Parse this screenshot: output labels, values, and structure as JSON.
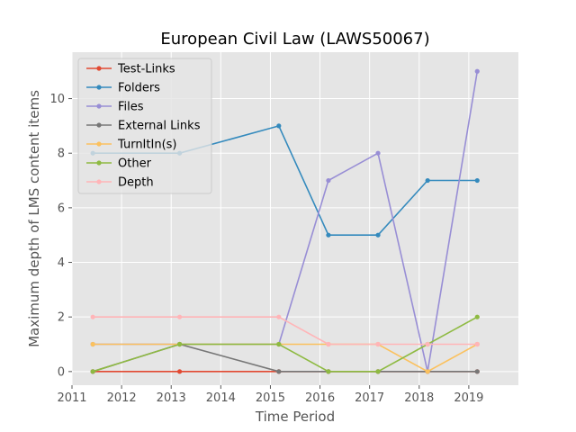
{
  "chart_data": {
    "type": "line",
    "title": "European Civil Law (LAWS50067)",
    "xlabel": "Time Period",
    "ylabel": "Maximum depth of LMS content items",
    "xlim": [
      2011.0,
      2020.0
    ],
    "ylim": [
      -0.5,
      11.7
    ],
    "x_ticks": [
      2011,
      2012,
      2013,
      2014,
      2015,
      2016,
      2017,
      2018,
      2019
    ],
    "y_ticks": [
      0,
      2,
      4,
      6,
      8,
      10
    ],
    "grid": true,
    "legend_position": "top-left",
    "x": [
      2011.42,
      2013.17,
      2015.17,
      2016.17,
      2017.17,
      2018.17,
      2019.17
    ],
    "series": [
      {
        "name": "Test-Links",
        "color": "#e24a33",
        "values": [
          0,
          0,
          0,
          0,
          0,
          0,
          0
        ]
      },
      {
        "name": "Folders",
        "color": "#348abd",
        "values": [
          8,
          8,
          9,
          5,
          5,
          7,
          7
        ]
      },
      {
        "name": "Files",
        "color": "#988ed5",
        "values": [
          1,
          1,
          1,
          7,
          8,
          0,
          11
        ]
      },
      {
        "name": "External Links",
        "color": "#777777",
        "values": [
          0,
          1,
          0,
          0,
          0,
          0,
          0
        ]
      },
      {
        "name": "TurnItIn(s)",
        "color": "#fbc15e",
        "values": [
          1,
          1,
          1,
          1,
          1,
          0,
          1
        ]
      },
      {
        "name": "Other",
        "color": "#8eba42",
        "values": [
          0,
          1,
          1,
          0,
          0,
          1,
          2
        ]
      },
      {
        "name": "Depth",
        "color": "#ffb5b8",
        "values": [
          2,
          2,
          2,
          1,
          1,
          1,
          1
        ]
      }
    ]
  }
}
